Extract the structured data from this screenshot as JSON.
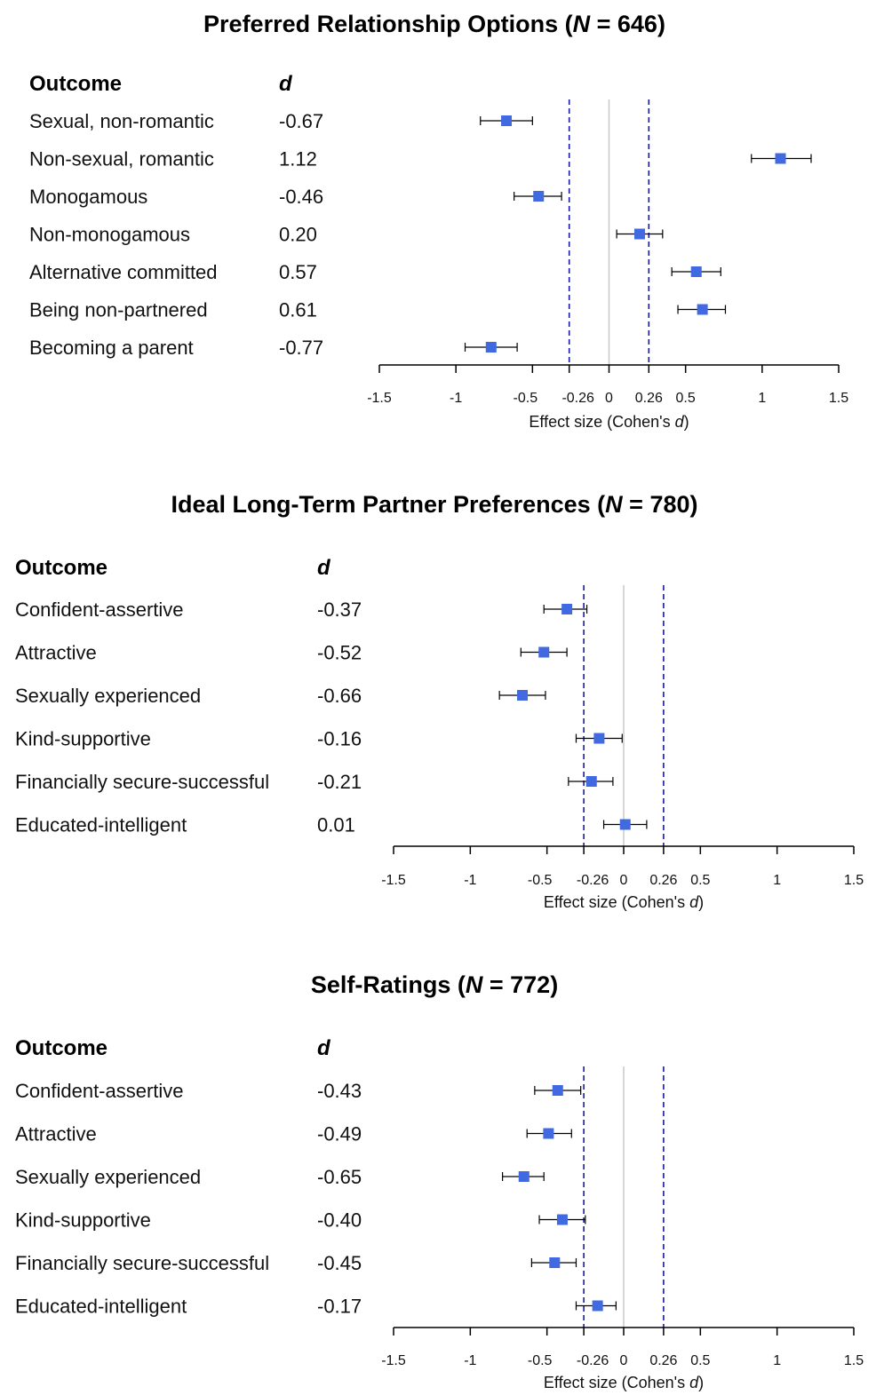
{
  "chart_data": [
    {
      "type": "forest",
      "title": "Preferred Relationship Options",
      "n_label": "N",
      "n_value": "646",
      "label_header": "Outcome",
      "value_header": "d",
      "xlabel": "Effect size (Cohen's d)",
      "xlim": [
        -1.5,
        1.5
      ],
      "xticks": [
        "-1.5",
        "-1",
        "-0.5",
        "-0.26",
        "0",
        "0.26",
        "0.5",
        "1",
        "1.5"
      ],
      "reference_lines": [
        -0.26,
        0.26
      ],
      "rows": [
        {
          "label": "Sexual, non-romantic",
          "d_label": "-0.67",
          "d": -0.67,
          "lo": -0.84,
          "hi": -0.5
        },
        {
          "label": "Non-sexual, romantic",
          "d_label": "1.12",
          "d": 1.12,
          "lo": 0.93,
          "hi": 1.32
        },
        {
          "label": "Monogamous",
          "d_label": "-0.46",
          "d": -0.46,
          "lo": -0.62,
          "hi": -0.31
        },
        {
          "label": "Non-monogamous",
          "d_label": "0.20",
          "d": 0.2,
          "lo": 0.05,
          "hi": 0.35
        },
        {
          "label": "Alternative committed",
          "d_label": "0.57",
          "d": 0.57,
          "lo": 0.41,
          "hi": 0.73
        },
        {
          "label": "Being non-partnered",
          "d_label": "0.61",
          "d": 0.61,
          "lo": 0.45,
          "hi": 0.76
        },
        {
          "label": "Becoming a parent",
          "d_label": "-0.77",
          "d": -0.77,
          "lo": -0.94,
          "hi": -0.6
        }
      ]
    },
    {
      "type": "forest",
      "title": "Ideal Long-Term Partner Preferences",
      "n_label": "N",
      "n_value": "780",
      "label_header": "Outcome",
      "value_header": "d",
      "xlabel": "Effect size (Cohen's d)",
      "xlim": [
        -1.5,
        1.5
      ],
      "xticks": [
        "-1.5",
        "-1",
        "-0.5",
        "-0.26",
        "0",
        "0.26",
        "0.5",
        "1",
        "1.5"
      ],
      "reference_lines": [
        -0.26,
        0.26
      ],
      "rows": [
        {
          "label": "Confident-assertive",
          "d_label": "-0.37",
          "d": -0.37,
          "lo": -0.52,
          "hi": -0.24
        },
        {
          "label": "Attractive",
          "d_label": "-0.52",
          "d": -0.52,
          "lo": -0.67,
          "hi": -0.37
        },
        {
          "label": "Sexually experienced",
          "d_label": "-0.66",
          "d": -0.66,
          "lo": -0.81,
          "hi": -0.51
        },
        {
          "label": "Kind-supportive",
          "d_label": "-0.16",
          "d": -0.16,
          "lo": -0.31,
          "hi": -0.01
        },
        {
          "label": "Financially secure-successful",
          "d_label": "-0.21",
          "d": -0.21,
          "lo": -0.36,
          "hi": -0.07
        },
        {
          "label": "Educated-intelligent",
          "d_label": "0.01",
          "d": 0.01,
          "lo": -0.13,
          "hi": 0.15
        }
      ]
    },
    {
      "type": "forest",
      "title": "Self-Ratings",
      "n_label": "N",
      "n_value": "772",
      "label_header": "Outcome",
      "value_header": "d",
      "xlabel": "Effect size (Cohen's d)",
      "xlim": [
        -1.5,
        1.5
      ],
      "xticks": [
        "-1.5",
        "-1",
        "-0.5",
        "-0.26",
        "0",
        "0.26",
        "0.5",
        "1",
        "1.5"
      ],
      "reference_lines": [
        -0.26,
        0.26
      ],
      "rows": [
        {
          "label": "Confident-assertive",
          "d_label": "-0.43",
          "d": -0.43,
          "lo": -0.58,
          "hi": -0.28
        },
        {
          "label": "Attractive",
          "d_label": "-0.49",
          "d": -0.49,
          "lo": -0.63,
          "hi": -0.34
        },
        {
          "label": "Sexually experienced",
          "d_label": "-0.65",
          "d": -0.65,
          "lo": -0.79,
          "hi": -0.52
        },
        {
          "label": "Kind-supportive",
          "d_label": "-0.40",
          "d": -0.4,
          "lo": -0.55,
          "hi": -0.25
        },
        {
          "label": "Financially secure-successful",
          "d_label": "-0.45",
          "d": -0.45,
          "lo": -0.6,
          "hi": -0.31
        },
        {
          "label": "Educated-intelligent",
          "d_label": "-0.17",
          "d": -0.17,
          "lo": -0.31,
          "hi": -0.05
        }
      ]
    }
  ],
  "colors": {
    "marker": "#4169e1",
    "reference_line": "#1a1a9c",
    "zero_line": "#c8c8c8",
    "axis": "#000000"
  }
}
